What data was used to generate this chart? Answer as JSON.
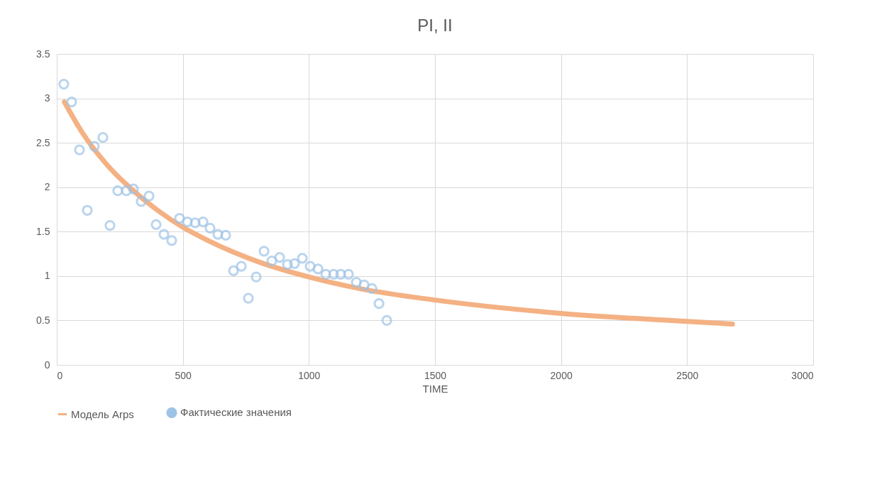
{
  "chart_data": {
    "type": "scatter",
    "title": "PI, II",
    "xlabel": "TIME",
    "xlim": [
      0,
      3000
    ],
    "xticks": [
      0,
      500,
      1000,
      1500,
      2000,
      2500,
      3000
    ],
    "ylim": [
      0,
      3.5
    ],
    "yticks": [
      0,
      0.5,
      1,
      1.5,
      2,
      2.5,
      3,
      3.5
    ],
    "grid": true,
    "legend": "bottom",
    "series": [
      {
        "name": "Модель Arps",
        "type": "line",
        "color": "#f4b183",
        "line_style": "solid",
        "x": [
          30,
          100,
          200,
          300,
          400,
          500,
          600,
          700,
          800,
          1000,
          1200,
          1500,
          2000,
          2500,
          2680
        ],
        "values": [
          2.96,
          2.62,
          2.25,
          1.97,
          1.74,
          1.55,
          1.4,
          1.27,
          1.16,
          0.99,
          0.86,
          0.73,
          0.58,
          0.49,
          0.46
        ]
      },
      {
        "name": "Фактические значения",
        "marker": "circle",
        "color": "#9dc3e6",
        "x": [
          28,
          59,
          90,
          121,
          149,
          183,
          211,
          242,
          276,
          304,
          335,
          366,
          394,
          425,
          456,
          487,
          518,
          549,
          580,
          608,
          639,
          670,
          701,
          732,
          760,
          791,
          822,
          853,
          884,
          915,
          943,
          974,
          1005,
          1036,
          1067,
          1098,
          1126,
          1157,
          1188,
          1219,
          1250,
          1278,
          1309
        ],
        "values": [
          3.16,
          2.96,
          2.42,
          1.74,
          2.46,
          2.56,
          1.57,
          1.96,
          1.96,
          1.98,
          1.84,
          1.9,
          1.58,
          1.47,
          1.4,
          1.65,
          1.61,
          1.6,
          1.61,
          1.54,
          1.47,
          1.46,
          1.06,
          1.11,
          0.75,
          0.99,
          1.28,
          1.17,
          1.21,
          1.13,
          1.14,
          1.2,
          1.11,
          1.08,
          1.02,
          1.02,
          1.02,
          1.02,
          0.93,
          0.9,
          0.86,
          0.69,
          0.5
        ]
      }
    ]
  }
}
